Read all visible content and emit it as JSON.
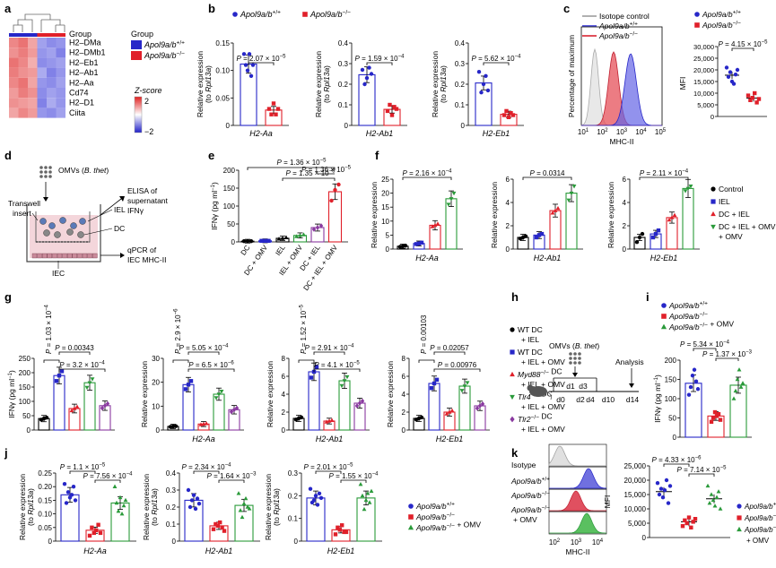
{
  "panel_letters": [
    "a",
    "b",
    "c",
    "d",
    "e",
    "f",
    "g",
    "h",
    "i",
    "j",
    "k"
  ],
  "colors": {
    "wt": "#2727c8",
    "ko": "#e0202a",
    "omv": "#2a9a3a",
    "myd": "#e0202a",
    "tlr4": "#2a9a3a",
    "tlr2": "#8a3aa0",
    "ctrl": "#000000",
    "iel": "#2727c8",
    "dciel": "#e0202a",
    "dcielomv": "#2a9a3a",
    "gray": "#b0b0b0"
  },
  "panel_a": {
    "group_label": "Group",
    "genes": [
      "H2–DMa",
      "H2–DMb1",
      "H2–Eb1",
      "H2–Ab1",
      "H2–Aa",
      "Cd74",
      "H2–D1",
      "Ciita"
    ],
    "legend_title": "Group",
    "legend": [
      "Apol9a/b+/+",
      "Apol9a/b−/−"
    ],
    "zscore_title": "Z-score",
    "zscore_ticks": [
      "2",
      "0",
      "−2"
    ],
    "matrix": [
      [
        1.2,
        1.4,
        0.9,
        -0.9,
        -1.1,
        -1.0
      ],
      [
        1.1,
        1.3,
        1.0,
        -1.0,
        -0.9,
        -1.2
      ],
      [
        1.4,
        1.2,
        0.8,
        -1.1,
        -1.0,
        -0.9
      ],
      [
        1.3,
        1.1,
        1.0,
        -0.8,
        -1.2,
        -1.0
      ],
      [
        1.2,
        1.4,
        0.9,
        -1.0,
        -1.1,
        -0.9
      ],
      [
        1.0,
        1.3,
        1.1,
        -1.1,
        -0.9,
        -1.0
      ],
      [
        1.1,
        1.0,
        0.9,
        -1.2,
        -0.8,
        -1.0
      ],
      [
        0.9,
        1.2,
        1.0,
        -1.0,
        -1.1,
        -0.9
      ]
    ]
  },
  "panel_b": {
    "legend": [
      "Apol9a/b+/+",
      "Apol9a/b−/−"
    ],
    "charts": [
      {
        "gene": "H2-Aa",
        "ylabel": "Relative expression (to Rpl13a)",
        "p": "P = 2.07 × 10−5",
        "ylim": [
          0,
          0.15
        ],
        "ticks": [
          "0",
          "0.05",
          "0.10",
          "0.15"
        ],
        "wt": [
          0.13,
          0.11,
          0.1,
          0.13,
          0.09,
          0.11
        ],
        "ko": [
          0.03,
          0.02,
          0.04,
          0.02,
          0.03
        ]
      },
      {
        "gene": "H2-Ab1",
        "ylabel": "Relative expression (to Rpl13a)",
        "p": "P = 1.59 × 10−4",
        "ylim": [
          0,
          0.4
        ],
        "ticks": [
          "0",
          "0.1",
          "0.2",
          "0.3",
          "0.4"
        ],
        "wt": [
          0.27,
          0.2,
          0.23,
          0.28,
          0.25
        ],
        "ko": [
          0.07,
          0.1,
          0.05,
          0.09,
          0.08
        ]
      },
      {
        "gene": "H2-Eb1",
        "ylabel": "Relative expression (to Rpl13a)",
        "p": "P = 5.62 × 10−4",
        "ylim": [
          0,
          0.4
        ],
        "ticks": [
          "0",
          "0.1",
          "0.2",
          "0.3",
          "0.4"
        ],
        "wt": [
          0.26,
          0.16,
          0.2,
          0.24,
          0.17
        ],
        "ko": [
          0.05,
          0.07,
          0.04,
          0.06,
          0.05
        ]
      }
    ]
  },
  "panel_c": {
    "hist_legend": [
      "Isotope control",
      "Apol9a/b+/+",
      "Apol9a/b−/−"
    ],
    "hist_ylabel": "Percentage of maximum",
    "hist_xlabel": "MHC-II",
    "hist_xticks": [
      "10",
      "10",
      "10",
      "10",
      "10"
    ],
    "hist_xexp": [
      "1",
      "2",
      "3",
      "4",
      "5"
    ],
    "legend": [
      "Apol9a/b+/+",
      "Apol9a/b−/−"
    ],
    "p": "P = 4.15 × 10−5",
    "ylabel": "MFI",
    "ticks": [
      "0",
      "5,000",
      "10,000",
      "15,000",
      "20,000",
      "25,000",
      "30,000"
    ],
    "ylim": [
      0,
      30000
    ],
    "wt": [
      21000,
      17000,
      19000,
      15000,
      14000,
      18000,
      20000
    ],
    "ko": [
      9000,
      7000,
      8000,
      10000,
      6000,
      7500
    ]
  },
  "panel_d": {
    "omv_label": "OMVs (B. thet)",
    "transwell": "Transwell insert",
    "iel": "IEL",
    "dc": "DC",
    "iec": "IEC",
    "elisa": "ELISA of supernatant IFNγ",
    "qpcr": "qPCR of IEC MHC-II"
  },
  "panel_e": {
    "ylabel": "IFNγ (pg ml−1)",
    "p1": "P = 1.36 × 10−5",
    "p2": "P = 1.35 × 10−6",
    "ticks": [
      "0",
      "50",
      "100",
      "150",
      "200"
    ],
    "ylim": [
      0,
      200
    ],
    "categories": [
      "DC",
      "DC + OMV",
      "IEL",
      "IEL + OMV",
      "DC + IEL",
      "DC + IEL + OMV"
    ],
    "values": [
      2,
      3,
      10,
      18,
      40,
      140
    ],
    "points": [
      [
        2,
        2,
        2
      ],
      [
        3,
        3,
        3
      ],
      [
        8,
        10,
        12
      ],
      [
        15,
        18,
        20
      ],
      [
        35,
        40,
        45
      ],
      [
        115,
        145,
        160
      ]
    ]
  },
  "panel_f": {
    "ylabel": "Relative expression",
    "legend": [
      "Control",
      "IEL",
      "DC + IEL",
      "DC + IEL + OMV"
    ],
    "charts": [
      {
        "gene": "H2-Aa",
        "p": "P = 2.16 × 10−4",
        "ylim": [
          0,
          25
        ],
        "ticks": [
          "0",
          "5",
          "10",
          "15",
          "20",
          "25"
        ],
        "values": [
          1,
          2,
          8.5,
          18
        ],
        "pts": [
          [
            0.8,
            1,
            1.2
          ],
          [
            1.8,
            2,
            2.3
          ],
          [
            8,
            8.5,
            9
          ],
          [
            16,
            18,
            20
          ]
        ]
      },
      {
        "gene": "H2-Ab1",
        "p": "P = 0.0314",
        "ylim": [
          0,
          6
        ],
        "ticks": [
          "0",
          "2",
          "4",
          "6"
        ],
        "values": [
          1,
          1.2,
          3.3,
          4.8
        ],
        "pts": [
          [
            0.9,
            1,
            1.1
          ],
          [
            1,
            1.2,
            1.3
          ],
          [
            3.1,
            3.3,
            3.5
          ],
          [
            4.2,
            4.8,
            5.4
          ]
        ]
      },
      {
        "gene": "H2-Eb1",
        "p": "P = 2.11 × 10−4",
        "ylim": [
          0,
          6
        ],
        "ticks": [
          "0",
          "2",
          "4",
          "6"
        ],
        "values": [
          1,
          1.3,
          2.7,
          5.2
        ],
        "pts": [
          [
            0.6,
            1,
            1.3
          ],
          [
            1,
            1.3,
            1.6
          ],
          [
            2.5,
            2.7,
            2.9
          ],
          [
            5,
            5.2,
            5.4
          ]
        ]
      }
    ]
  },
  "panel_g": {
    "legend": [
      "WT DC + IEL",
      "WT DC + IEL + OMV",
      "Myd88−/− DC + IEL + OMV",
      "Tlr4−/− DC + IEL + OMV",
      "Tlr2−/− DC + IEL + OMV"
    ],
    "charts": [
      {
        "gene": "",
        "ylabel": "IFNγ (pg ml−1)",
        "ylim": [
          0,
          250
        ],
        "ticks": [
          "0",
          "50",
          "100",
          "150",
          "200",
          "250"
        ],
        "values": [
          40,
          190,
          75,
          165,
          85
        ],
        "p": [
          "P = 1.03 × 10−4",
          "P = 0.00343",
          "P = 3.2 × 10−4"
        ]
      },
      {
        "gene": "H2-Aa",
        "ylabel": "Relative expression",
        "ylim": [
          0,
          30
        ],
        "ticks": [
          "0",
          "10",
          "20",
          "30"
        ],
        "values": [
          1.5,
          19,
          2.5,
          15,
          8.5
        ],
        "p": [
          "P = 2.9 × 10−6",
          "P = 5.05 × 10−4",
          "P = 6.5 × 10−6"
        ]
      },
      {
        "gene": "H2-Ab1",
        "ylabel": "Relative expression",
        "ylim": [
          0,
          8
        ],
        "ticks": [
          "0",
          "2",
          "4",
          "6",
          "8"
        ],
        "values": [
          1.3,
          6.5,
          1,
          5.5,
          3
        ],
        "p": [
          "P = 1.52 × 10−5",
          "P = 2.91 × 10−4",
          "P = 4.1 × 10−5"
        ]
      },
      {
        "gene": "H2-Eb1",
        "ylabel": "Relative expression",
        "ylim": [
          0,
          8
        ],
        "ticks": [
          "0",
          "2",
          "4",
          "6",
          "8"
        ],
        "values": [
          1.3,
          5.2,
          2,
          4.9,
          2.7
        ],
        "p": [
          "P = 0.00103",
          "P = 0.02057",
          "P = 0.00976"
        ]
      }
    ]
  },
  "panel_h": {
    "omv": "OMVs (B. thet)",
    "analysis": "Analysis",
    "days": [
      "d0",
      "d1",
      "d2",
      "d3",
      "d4",
      "d10",
      "d14"
    ]
  },
  "panel_i": {
    "legend": [
      "Apol9a/b+/+",
      "Apol9a/b−/−",
      "Apol9a/b−/− + OMV"
    ],
    "ylabel": "IFNγ (pg ml−1)",
    "p1": "P = 5.34 × 10−4",
    "p2": "P = 1.37 × 10−3",
    "ylim": [
      0,
      200
    ],
    "ticks": [
      "0",
      "50",
      "100",
      "150",
      "200"
    ],
    "values": [
      140,
      55,
      135
    ],
    "pts": [
      [
        110,
        130,
        160,
        175,
        145,
        125
      ],
      [
        40,
        50,
        65,
        55,
        60,
        45
      ],
      [
        100,
        120,
        150,
        175,
        130,
        140
      ]
    ]
  },
  "panel_j": {
    "charts": [
      {
        "gene": "H2-Aa",
        "ylabel": "Relative expression (to Rpl13a)",
        "p": [
          "P = 1.1 × 10−5",
          "P = 7.56 × 10−4"
        ],
        "ylim": [
          0,
          0.25
        ],
        "ticks": [
          "0",
          "0.05",
          "0.10",
          "0.15",
          "0.20",
          "0.25"
        ],
        "values": [
          0.17,
          0.04,
          0.14
        ],
        "pts": [
          [
            0.21,
            0.14,
            0.18,
            0.16,
            0.17,
            0.2,
            0.15
          ],
          [
            0.02,
            0.05,
            0.03,
            0.04,
            0.06,
            0.03
          ],
          [
            0.2,
            0.14,
            0.11,
            0.16,
            0.1,
            0.13,
            0.15
          ]
        ]
      },
      {
        "gene": "H2-Ab1",
        "ylabel": "Relative expression (to Rpl13a)",
        "p": [
          "P = 2.34 × 10−4",
          "P = 1.64 × 10−3"
        ],
        "ylim": [
          0,
          0.4
        ],
        "ticks": [
          "0",
          "0.1",
          "0.2",
          "0.3",
          "0.4"
        ],
        "values": [
          0.24,
          0.09,
          0.21
        ],
        "pts": [
          [
            0.3,
            0.2,
            0.24,
            0.27,
            0.19,
            0.25,
            0.22
          ],
          [
            0.07,
            0.1,
            0.09,
            0.11,
            0.08,
            0.06
          ],
          [
            0.28,
            0.18,
            0.14,
            0.22,
            0.25,
            0.2,
            0.19
          ]
        ]
      },
      {
        "gene": "H2-Eb1",
        "ylabel": "Relative expression (to Rpl13a)",
        "p": [
          "P = 2.01 × 10−5",
          "P = 1.55 × 10−4"
        ],
        "ylim": [
          0,
          0.3
        ],
        "ticks": [
          "0",
          "0.1",
          "0.2",
          "0.3"
        ],
        "values": [
          0.19,
          0.05,
          0.19
        ],
        "pts": [
          [
            0.23,
            0.17,
            0.18,
            0.2,
            0.16,
            0.21,
            0.19
          ],
          [
            0.03,
            0.06,
            0.05,
            0.07,
            0.04,
            0.04
          ],
          [
            0.25,
            0.2,
            0.14,
            0.18,
            0.21,
            0.17,
            0.22
          ]
        ]
      }
    ],
    "legend": [
      "Apol9a/b+/+",
      "Apol9a/b−/−",
      "Apol9a/b−/− + OMV"
    ]
  },
  "panel_k": {
    "rows": [
      "Isotype",
      "Apol9a/b+/+",
      "Apol9a/b−/−",
      "Apol9a/b−/− + OMV"
    ],
    "hist_xlabel": "MHC-II",
    "hist_xticks": [
      "10",
      "10",
      "10"
    ],
    "hist_xexp": [
      "2",
      "3",
      "4"
    ],
    "ylabel": "MFI",
    "p1": "P = 4.33 × 10−6",
    "p2": "P = 7.14 × 10−5",
    "ylim": [
      0,
      25000
    ],
    "ticks": [
      "0",
      "5,000",
      "10,000",
      "15,000",
      "20,000",
      "25,000"
    ],
    "values": [
      16000,
      5500,
      13500
    ],
    "pts": [
      [
        19000,
        15000,
        17000,
        14000,
        16500,
        20000,
        12000,
        18000
      ],
      [
        4000,
        6000,
        5000,
        7000,
        3500,
        5500,
        6500
      ],
      [
        18000,
        12000,
        15000,
        13000,
        11000,
        14000,
        16000,
        10000
      ]
    ],
    "legend": [
      "Apol9a/b+/+",
      "Apol9a/b−/−",
      "Apol9a/b−/− + OMV"
    ]
  },
  "chart_data": [
    {
      "type": "heatmap",
      "title": "",
      "rows": [
        "H2–DMa",
        "H2–DMb1",
        "H2–Eb1",
        "H2–Ab1",
        "H2–Aa",
        "Cd74",
        "H2–D1",
        "Ciita"
      ],
      "columns": 6,
      "legend": [
        "Apol9a/b+/+",
        "Apol9a/b−/−"
      ],
      "zscore_range": [
        -2,
        2
      ]
    },
    {
      "type": "bar",
      "xlabel": "H2-Aa",
      "ylabel": "Relative expression (to Rpl13a)",
      "ylim": [
        0,
        0.15
      ],
      "series": [
        {
          "name": "Apol9a/b+/+",
          "values": [
            0.113
          ]
        },
        {
          "name": "Apol9a/b−/−",
          "values": [
            0.028
          ]
        }
      ]
    },
    {
      "type": "bar",
      "xlabel": "H2-Ab1",
      "ylabel": "Relative expression (to Rpl13a)",
      "ylim": [
        0,
        0.4
      ],
      "series": [
        {
          "name": "Apol9a/b+/+",
          "values": [
            0.246
          ]
        },
        {
          "name": "Apol9a/b−/−",
          "values": [
            0.078
          ]
        }
      ]
    },
    {
      "type": "bar",
      "xlabel": "H2-Eb1",
      "ylabel": "Relative expression (to Rpl13a)",
      "ylim": [
        0,
        0.4
      ],
      "series": [
        {
          "name": "Apol9a/b+/+",
          "values": [
            0.206
          ]
        },
        {
          "name": "Apol9a/b−/−",
          "values": [
            0.054
          ]
        }
      ]
    },
    {
      "type": "bar",
      "ylabel": "MFI",
      "ylim": [
        0,
        30000
      ],
      "series": [
        {
          "name": "Apol9a/b+/+",
          "values": [
            17700
          ]
        },
        {
          "name": "Apol9a/b−/−",
          "values": [
            7900
          ]
        }
      ]
    },
    {
      "type": "bar",
      "ylabel": "IFNγ (pg ml−1)",
      "ylim": [
        0,
        200
      ],
      "categories": [
        "DC",
        "DC + OMV",
        "IEL",
        "IEL + OMV",
        "DC + IEL",
        "DC + IEL + OMV"
      ],
      "values": [
        2,
        3,
        10,
        18,
        40,
        140
      ]
    },
    {
      "type": "bar",
      "ylabel": "Relative expression",
      "categories": [
        "Control",
        "IEL",
        "DC + IEL",
        "DC + IEL + OMV"
      ],
      "series": [
        {
          "name": "H2-Aa",
          "values": [
            1,
            2,
            8.5,
            18
          ]
        },
        {
          "name": "H2-Ab1",
          "values": [
            1,
            1.2,
            3.3,
            4.8
          ]
        },
        {
          "name": "H2-Eb1",
          "values": [
            1,
            1.3,
            2.7,
            5.2
          ]
        }
      ]
    },
    {
      "type": "bar",
      "categories": [
        "WT DC + IEL",
        "WT DC + IEL + OMV",
        "Myd88−/− DC + IEL + OMV",
        "Tlr4−/− DC + IEL + OMV",
        "Tlr2−/− DC + IEL + OMV"
      ],
      "series": [
        {
          "name": "IFNγ (pg ml−1)",
          "values": [
            40,
            190,
            75,
            165,
            85
          ]
        },
        {
          "name": "H2-Aa",
          "values": [
            1.5,
            19,
            2.5,
            15,
            8.5
          ]
        },
        {
          "name": "H2-Ab1",
          "values": [
            1.3,
            6.5,
            1,
            5.5,
            3
          ]
        },
        {
          "name": "H2-Eb1",
          "values": [
            1.3,
            5.2,
            2,
            4.9,
            2.7
          ]
        }
      ]
    },
    {
      "type": "bar",
      "ylabel": "IFNγ (pg ml−1)",
      "ylim": [
        0,
        200
      ],
      "categories": [
        "Apol9a/b+/+",
        "Apol9a/b−/−",
        "Apol9a/b−/− + OMV"
      ],
      "values": [
        140,
        55,
        135
      ]
    },
    {
      "type": "bar",
      "ylabel": "Relative expression (to Rpl13a)",
      "categories": [
        "Apol9a/b+/+",
        "Apol9a/b−/−",
        "Apol9a/b−/− + OMV"
      ],
      "series": [
        {
          "name": "H2-Aa",
          "values": [
            0.17,
            0.04,
            0.14
          ]
        },
        {
          "name": "H2-Ab1",
          "values": [
            0.24,
            0.09,
            0.21
          ]
        },
        {
          "name": "H2-Eb1",
          "values": [
            0.19,
            0.05,
            0.19
          ]
        }
      ]
    },
    {
      "type": "bar",
      "ylabel": "MFI",
      "ylim": [
        0,
        25000
      ],
      "categories": [
        "Apol9a/b+/+",
        "Apol9a/b−/−",
        "Apol9a/b−/− + OMV"
      ],
      "values": [
        16000,
        5500,
        13500
      ]
    }
  ]
}
